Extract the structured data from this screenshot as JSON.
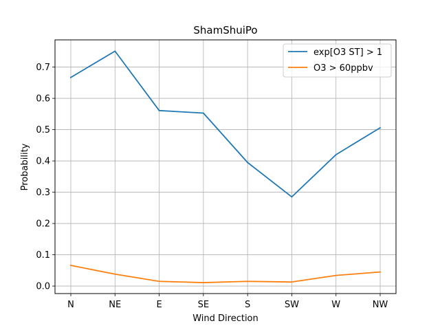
{
  "chart_data": {
    "type": "line",
    "title": "ShamShuiPo",
    "xlabel": "Wind Direction",
    "ylabel": "Probability",
    "categories": [
      "N",
      "NE",
      "E",
      "SE",
      "S",
      "SW",
      "W",
      "NW"
    ],
    "ylim": [
      -0.024,
      0.787
    ],
    "yticks": [
      0.0,
      0.1,
      0.2,
      0.3,
      0.4,
      0.5,
      0.6,
      0.7
    ],
    "ytick_labels": [
      "0.0",
      "0.1",
      "0.2",
      "0.3",
      "0.4",
      "0.5",
      "0.6",
      "0.7"
    ],
    "grid": true,
    "legend_position": "top-right",
    "series": [
      {
        "name": "exp[O3 ST] > 1",
        "color": "#1f77b4",
        "values": [
          0.667,
          0.751,
          0.561,
          0.553,
          0.395,
          0.285,
          0.42,
          0.506
        ]
      },
      {
        "name": "O3 > 60ppbv",
        "color": "#ff7f0e",
        "values": [
          0.066,
          0.038,
          0.015,
          0.011,
          0.015,
          0.013,
          0.034,
          0.045
        ]
      }
    ]
  }
}
